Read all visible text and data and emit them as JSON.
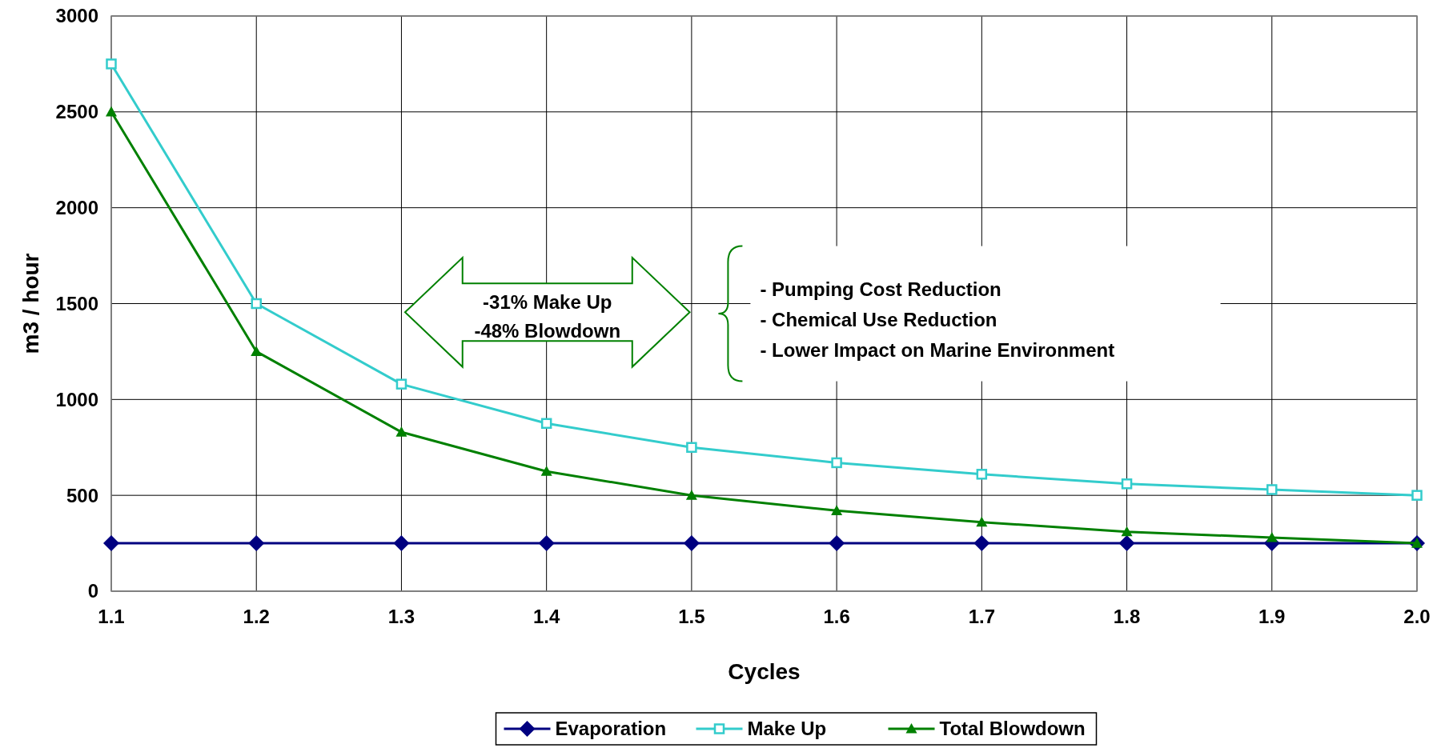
{
  "chart_data": {
    "type": "line",
    "xlabel": "Cycles",
    "ylabel": "m3 / hour",
    "x": [
      1.1,
      1.2,
      1.3,
      1.4,
      1.5,
      1.6,
      1.7,
      1.8,
      1.9,
      2.0
    ],
    "series": [
      {
        "name": "Evaporation",
        "color": "#000080",
        "marker": "diamond",
        "values": [
          250,
          250,
          250,
          250,
          250,
          250,
          250,
          250,
          250,
          250
        ]
      },
      {
        "name": "Make Up",
        "color": "#33cccc",
        "marker": "square",
        "values": [
          2750,
          1500,
          1080,
          875,
          750,
          670,
          610,
          560,
          530,
          500
        ]
      },
      {
        "name": "Total Blowdown",
        "color": "#008000",
        "marker": "triangle",
        "values": [
          2500,
          1250,
          830,
          625,
          500,
          420,
          360,
          310,
          280,
          250
        ]
      }
    ],
    "xlim": [
      1.1,
      2.0
    ],
    "xticks": [
      1.1,
      1.2,
      1.3,
      1.4,
      1.5,
      1.6,
      1.7,
      1.8,
      1.9,
      {
        "value": 2.0,
        "label": "2.0"
      }
    ],
    "ylim": [
      0,
      3000
    ],
    "yticks": [
      0,
      500,
      1000,
      1500,
      2000,
      2500,
      3000
    ],
    "grid": true,
    "legend": "bottom",
    "annotations": [
      "-31% Make Up",
      "-48% Blowdown",
      "- Pumping Cost Reduction",
      "- Chemical Use Reduction",
      "- Lower Impact on Marine Environment"
    ]
  }
}
